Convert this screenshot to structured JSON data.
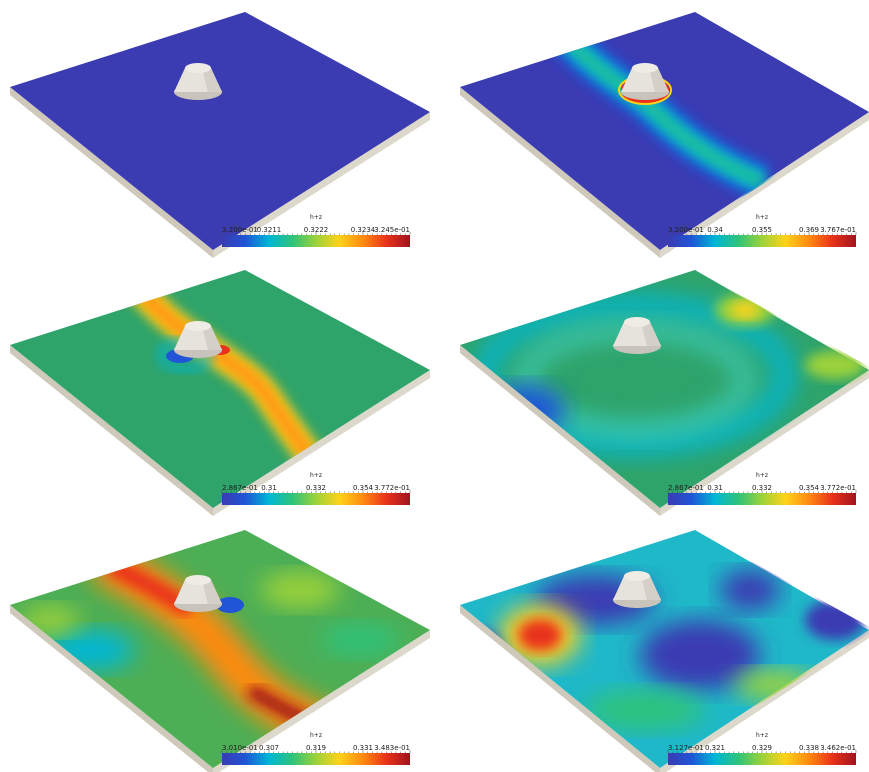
{
  "colors": {
    "background": "#ffffff",
    "slab_side": "#ddd8cc",
    "slab_side_dark": "#cfc9bb",
    "obstacle": "#e6e3dc",
    "obstacle_shade": "#c8c4bb",
    "colormap": [
      "#3b3bb2",
      "#1f55d6",
      "#00b7d6",
      "#2ec37a",
      "#9bd23a",
      "#ffd21a",
      "#ff8a10",
      "#e8321a",
      "#a0141e"
    ]
  },
  "panels": [
    {
      "id": "panel-1",
      "field": "uniform-deep-blue",
      "colorbar": {
        "title": "h+z",
        "labels": [
          "3.200e-01",
          "0.3211",
          "0.3222",
          "0.3234",
          "3.245e-01"
        ]
      }
    },
    {
      "id": "panel-2",
      "field": "blue-with-diagonal-wave",
      "colorbar": {
        "title": "h+z",
        "labels": [
          "3.200e-01",
          "0.34",
          "0.355",
          "0.369",
          "3.767e-01"
        ]
      }
    },
    {
      "id": "panel-3",
      "field": "green-with-diagonal-wave",
      "colorbar": {
        "title": "h+z",
        "labels": [
          "2.867e-01",
          "0.31",
          "0.332",
          "0.354",
          "3.772e-01"
        ]
      }
    },
    {
      "id": "panel-4",
      "field": "green-with-ring-wave",
      "colorbar": {
        "title": "h+z",
        "labels": [
          "2.867e-01",
          "0.31",
          "0.332",
          "0.354",
          "3.772e-01"
        ]
      }
    },
    {
      "id": "panel-5",
      "field": "turbulent-green-orange",
      "colorbar": {
        "title": "h+z",
        "labels": [
          "3.010e-01",
          "0.307",
          "0.319",
          "0.331",
          "3.483e-01"
        ]
      }
    },
    {
      "id": "panel-6",
      "field": "turbulent-blue-cyan",
      "colorbar": {
        "title": "h+z",
        "labels": [
          "3.127e-01",
          "0.321",
          "0.329",
          "0.338",
          "3.462e-01"
        ]
      }
    }
  ]
}
